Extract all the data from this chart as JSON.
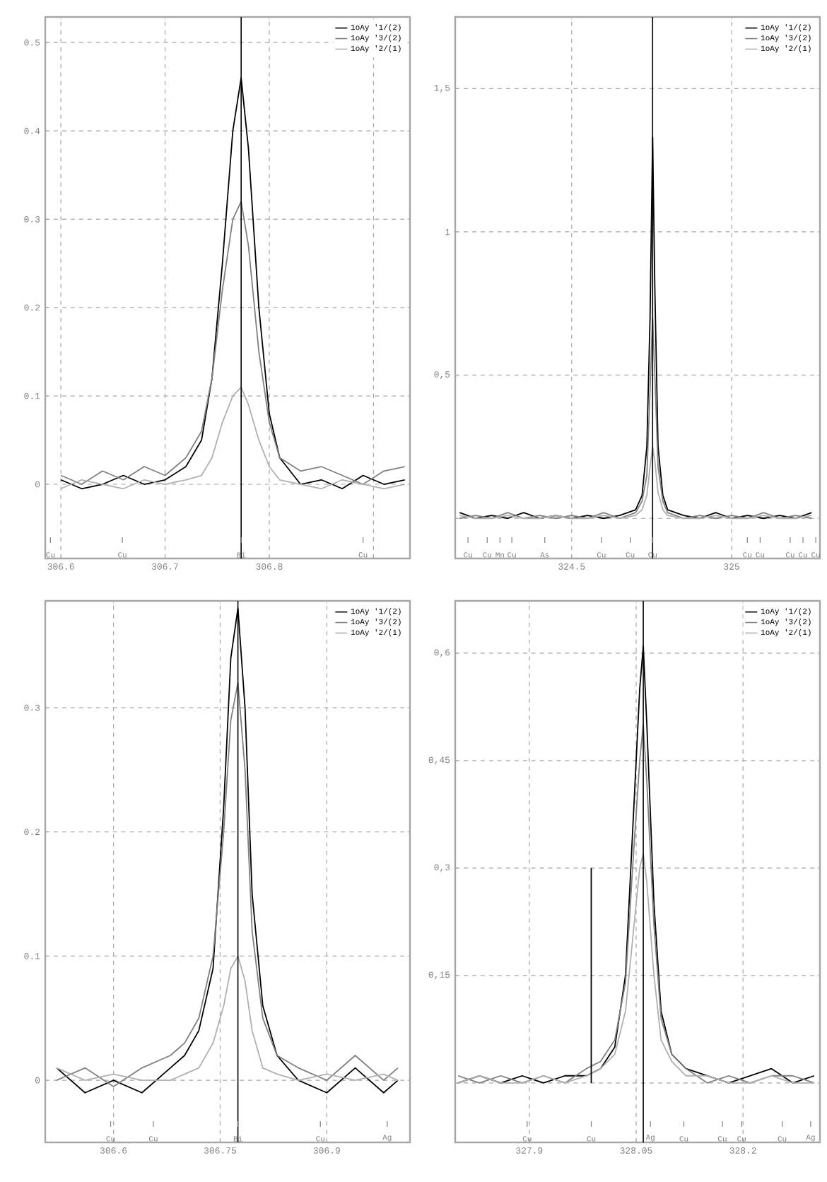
{
  "chart_data": [
    {
      "type": "line",
      "grid": true,
      "legend": "top right",
      "xlim": [
        306.585,
        306.935
      ],
      "ylim": [
        -0.084,
        0.529
      ],
      "xticks": [
        306.6,
        306.7,
        306.8,
        {
          "value": 306.9,
          "label": null
        }
      ],
      "yticks": [
        0,
        0.1,
        0.2,
        0.3,
        0.4,
        0.5
      ],
      "x": [
        306.6,
        306.62,
        306.64,
        306.66,
        306.68,
        306.7,
        306.72,
        306.735,
        306.745,
        306.755,
        306.765,
        306.773,
        306.78,
        306.79,
        306.8,
        306.81,
        306.83,
        306.85,
        306.87,
        306.89,
        306.91,
        306.93
      ],
      "series": [
        {
          "name": "1oAy '1/(2)",
          "color": "#000000",
          "values": [
            0.005,
            -0.005,
            0.0,
            0.01,
            0.0,
            0.005,
            0.02,
            0.05,
            0.12,
            0.25,
            0.4,
            0.46,
            0.38,
            0.2,
            0.08,
            0.03,
            0.0,
            0.005,
            -0.005,
            0.01,
            0.0,
            0.005
          ]
        },
        {
          "name": "1oAy '3/(2)",
          "color": "#808080",
          "values": [
            0.01,
            0.0,
            0.015,
            0.005,
            0.02,
            0.01,
            0.03,
            0.06,
            0.12,
            0.22,
            0.3,
            0.32,
            0.27,
            0.15,
            0.07,
            0.03,
            0.015,
            0.02,
            0.01,
            0.0,
            0.015,
            0.02
          ]
        },
        {
          "name": "1oAy '2/(1)",
          "color": "#b0b0b0",
          "values": [
            -0.005,
            0.005,
            0.0,
            -0.005,
            0.005,
            0.0,
            0.005,
            0.01,
            0.03,
            0.07,
            0.1,
            0.11,
            0.09,
            0.05,
            0.02,
            0.005,
            0.0,
            -0.005,
            0.005,
            0.0,
            -0.005,
            0.0
          ]
        }
      ],
      "ref_lines": [
        {
          "axis": "x",
          "value": 306.773,
          "color": "#000000"
        },
        {
          "axis": "x",
          "value": 306.59,
          "label": "Cu"
        },
        {
          "axis": "x",
          "value": 306.659,
          "label": "Cu"
        },
        {
          "axis": "x",
          "value": 306.773,
          "label": "Bi"
        },
        {
          "axis": "x",
          "value": 306.89,
          "label": "Cu"
        }
      ]
    },
    {
      "type": "line",
      "grid": true,
      "legend": "top right",
      "xlim": [
        324.136,
        325.276
      ],
      "ylim": [
        -0.14,
        1.75
      ],
      "xticks": [
        324.5,
        325
      ],
      "yticks": [
        {
          "value": 0,
          "label": null
        },
        {
          "value": 0.5,
          "label": "0,5"
        },
        1,
        {
          "value": 1.5,
          "label": "1,5"
        }
      ],
      "x": [
        324.15,
        324.2,
        324.25,
        324.3,
        324.35,
        324.4,
        324.45,
        324.5,
        324.55,
        324.6,
        324.65,
        324.7,
        324.72,
        324.735,
        324.745,
        324.753,
        324.76,
        324.77,
        324.785,
        324.8,
        324.85,
        324.9,
        324.95,
        325,
        325.05,
        325.1,
        325.15,
        325.2,
        325.25
      ],
      "series": [
        {
          "name": "1oAy '1/(2)",
          "color": "#000000",
          "values": [
            0.02,
            0.0,
            0.01,
            0.0,
            0.02,
            0.0,
            0.01,
            0.0,
            0.01,
            0.0,
            0.01,
            0.03,
            0.08,
            0.25,
            0.7,
            1.33,
            0.8,
            0.25,
            0.08,
            0.03,
            0.01,
            0.0,
            0.02,
            0.0,
            0.01,
            0.0,
            0.01,
            0.0,
            0.02
          ]
        },
        {
          "name": "1oAy '3/(2)",
          "color": "#808080",
          "values": [
            0.0,
            0.01,
            0.0,
            0.02,
            0.0,
            0.01,
            0.0,
            0.01,
            0.0,
            0.02,
            0.0,
            0.02,
            0.06,
            0.15,
            0.45,
            0.7,
            0.5,
            0.18,
            0.06,
            0.02,
            0.0,
            0.01,
            0.0,
            0.01,
            0.0,
            0.02,
            0.0,
            0.01,
            0.0
          ]
        },
        {
          "name": "1oAy '2/(1)",
          "color": "#b0b0b0",
          "values": [
            0.01,
            0.0,
            0.0,
            0.01,
            0.0,
            0.0,
            0.01,
            0.0,
            0.0,
            0.01,
            0.0,
            0.01,
            0.03,
            0.08,
            0.18,
            0.25,
            0.2,
            0.09,
            0.03,
            0.01,
            0.0,
            0.0,
            0.01,
            0.0,
            0.0,
            0.01,
            0.0,
            0.0,
            0.01
          ]
        }
      ],
      "ref_lines": [
        {
          "axis": "x",
          "value": 324.753,
          "color": "#000000"
        },
        {
          "axis": "x",
          "value": 324.176,
          "label": "Cu"
        },
        {
          "axis": "x",
          "value": 324.236,
          "label": "Cu"
        },
        {
          "axis": "x",
          "value": 324.276,
          "label": "Mn"
        },
        {
          "axis": "x",
          "value": 324.313,
          "label": "Cu"
        },
        {
          "axis": "x",
          "value": 324.416,
          "label": "As"
        },
        {
          "axis": "x",
          "value": 324.593,
          "label": "Cu"
        },
        {
          "axis": "x",
          "value": 324.683,
          "label": "Cu"
        },
        {
          "axis": "x",
          "value": 324.753,
          "label": "Cu"
        },
        {
          "axis": "x",
          "value": 325.049,
          "label": "Cu"
        },
        {
          "axis": "x",
          "value": 325.089,
          "label": "Cu"
        },
        {
          "axis": "x",
          "value": 325.183,
          "label": "Cu"
        },
        {
          "axis": "x",
          "value": 325.223,
          "label": "Cu"
        },
        {
          "axis": "x",
          "value": 325.263,
          "label": "Cu"
        }
      ]
    },
    {
      "type": "line",
      "grid": true,
      "legend": "top right",
      "xlim": [
        306.504,
        307.017
      ],
      "ylim": [
        -0.05,
        0.386
      ],
      "xticks": [
        306.6,
        306.75,
        306.9
      ],
      "yticks": [
        0,
        0.1,
        0.2,
        0.3
      ],
      "x": [
        306.52,
        306.56,
        306.6,
        306.64,
        306.68,
        306.7,
        306.72,
        306.74,
        306.755,
        306.765,
        306.775,
        306.785,
        306.795,
        306.81,
        306.83,
        306.86,
        306.9,
        306.94,
        306.98,
        307.0
      ],
      "series": [
        {
          "name": "1oAy '1/(2)",
          "color": "#000000",
          "values": [
            0.01,
            -0.01,
            0.0,
            -0.01,
            0.01,
            0.02,
            0.04,
            0.09,
            0.22,
            0.34,
            0.38,
            0.3,
            0.15,
            0.06,
            0.02,
            0.0,
            -0.01,
            0.01,
            -0.01,
            0.0
          ]
        },
        {
          "name": "1oAy '3/(2)",
          "color": "#808080",
          "values": [
            0.0,
            0.01,
            -0.005,
            0.01,
            0.02,
            0.03,
            0.05,
            0.1,
            0.2,
            0.29,
            0.32,
            0.25,
            0.12,
            0.05,
            0.02,
            0.01,
            0.0,
            0.02,
            0.0,
            0.01
          ]
        },
        {
          "name": "1oAy '2/(1)",
          "color": "#b0b0b0",
          "values": [
            0.01,
            0.0,
            0.005,
            0.0,
            0.0,
            0.005,
            0.01,
            0.03,
            0.06,
            0.09,
            0.1,
            0.08,
            0.04,
            0.01,
            0.005,
            0.0,
            0.005,
            0.0,
            0.005,
            0.0
          ]
        }
      ],
      "ref_lines": [
        {
          "axis": "x",
          "value": 306.775,
          "color": "#000000"
        },
        {
          "axis": "x",
          "value": 306.596,
          "label": "Cu"
        },
        {
          "axis": "x",
          "value": 306.656,
          "label": "Cu"
        },
        {
          "axis": "x",
          "value": 306.775,
          "label": "Bi"
        },
        {
          "axis": "x",
          "value": 306.891,
          "label": "Cu"
        },
        {
          "axis": "x",
          "value": 306.985,
          "label": "Ag"
        }
      ]
    },
    {
      "type": "line",
      "grid": true,
      "legend": "top right",
      "xlim": [
        327.796,
        328.308
      ],
      "ylim": [
        -0.083,
        0.673
      ],
      "xticks": [
        327.9,
        328.05,
        328.2
      ],
      "yticks": [
        {
          "value": 0,
          "label": null
        },
        {
          "value": 0.15,
          "label": "0,15"
        },
        {
          "value": 0.3,
          "label": "0,3"
        },
        {
          "value": 0.45,
          "label": "0,45"
        },
        {
          "value": 0.6,
          "label": "0,6"
        }
      ],
      "x": [
        327.8,
        327.83,
        327.86,
        327.89,
        327.92,
        327.95,
        327.98,
        328.0,
        328.02,
        328.035,
        328.045,
        328.055,
        328.06,
        328.065,
        328.075,
        328.085,
        328.1,
        328.12,
        328.15,
        328.18,
        328.21,
        328.24,
        328.27,
        328.3
      ],
      "series": [
        {
          "name": "1oAy '1/(2)",
          "color": "#000000",
          "values": [
            0.0,
            0.01,
            0.0,
            0.01,
            0.0,
            0.01,
            0.01,
            0.02,
            0.05,
            0.15,
            0.35,
            0.55,
            0.61,
            0.5,
            0.25,
            0.1,
            0.04,
            0.02,
            0.01,
            0.0,
            0.01,
            0.02,
            0.0,
            0.01
          ]
        },
        {
          "name": "1oAy '3/(2)",
          "color": "#808080",
          "values": [
            0.01,
            0.0,
            0.01,
            0.0,
            0.01,
            0.0,
            0.02,
            0.03,
            0.06,
            0.14,
            0.3,
            0.45,
            0.5,
            0.42,
            0.22,
            0.09,
            0.04,
            0.02,
            0.0,
            0.01,
            0.0,
            0.01,
            0.01,
            0.0
          ]
        },
        {
          "name": "1oAy '2/(1)",
          "color": "#b0b0b0",
          "values": [
            0.0,
            0.01,
            0.0,
            0.0,
            0.01,
            0.0,
            0.01,
            0.02,
            0.04,
            0.1,
            0.2,
            0.3,
            0.32,
            0.28,
            0.15,
            0.06,
            0.03,
            0.01,
            0.01,
            0.0,
            0.0,
            0.01,
            0.0,
            0.0
          ]
        },
        {
          "color": "#000000",
          "x": [
            327.987,
            327.987
          ],
          "values": [
            0,
            0.3
          ]
        }
      ],
      "ref_lines": [
        {
          "axis": "x",
          "value": 328.06,
          "color": "#000000"
        },
        {
          "axis": "x",
          "value": 327.897,
          "label": "Cu"
        },
        {
          "axis": "x",
          "value": 327.987,
          "label": "Cu"
        },
        {
          "axis": "x",
          "value": 328.07,
          "label": "Ag"
        },
        {
          "axis": "x",
          "value": 328.117,
          "label": "Cu"
        },
        {
          "axis": "x",
          "value": 328.171,
          "label": "Cu"
        },
        {
          "axis": "x",
          "value": 328.198,
          "label": "Cu"
        },
        {
          "axis": "x",
          "value": 328.255,
          "label": "Cu"
        },
        {
          "axis": "x",
          "value": 328.295,
          "label": "Ag"
        }
      ]
    }
  ]
}
